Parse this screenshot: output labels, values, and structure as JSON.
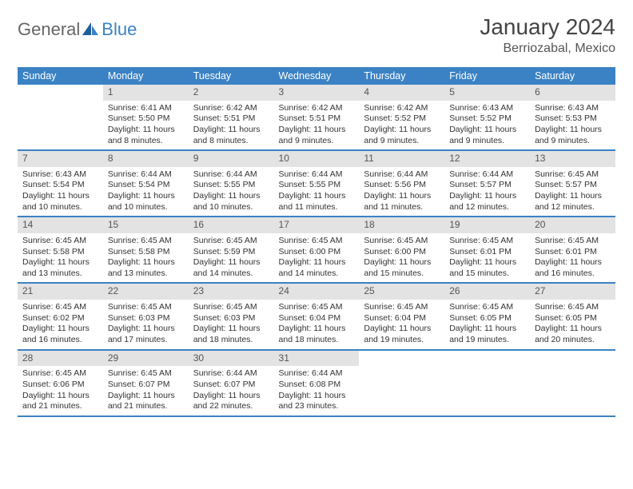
{
  "logo": {
    "general": "General",
    "blue": "Blue"
  },
  "title": "January 2024",
  "location": "Berriozabal, Mexico",
  "colors": {
    "header_bg": "#3b82c4",
    "header_text": "#ffffff",
    "daynum_bg": "#e3e3e3",
    "body_text": "#333333",
    "page_bg": "#ffffff"
  },
  "weekdays": [
    "Sunday",
    "Monday",
    "Tuesday",
    "Wednesday",
    "Thursday",
    "Friday",
    "Saturday"
  ],
  "weeks": [
    [
      {
        "empty": true
      },
      {
        "day": "1",
        "sunrise": "Sunrise: 6:41 AM",
        "sunset": "Sunset: 5:50 PM",
        "daylight": "Daylight: 11 hours and 8 minutes."
      },
      {
        "day": "2",
        "sunrise": "Sunrise: 6:42 AM",
        "sunset": "Sunset: 5:51 PM",
        "daylight": "Daylight: 11 hours and 8 minutes."
      },
      {
        "day": "3",
        "sunrise": "Sunrise: 6:42 AM",
        "sunset": "Sunset: 5:51 PM",
        "daylight": "Daylight: 11 hours and 9 minutes."
      },
      {
        "day": "4",
        "sunrise": "Sunrise: 6:42 AM",
        "sunset": "Sunset: 5:52 PM",
        "daylight": "Daylight: 11 hours and 9 minutes."
      },
      {
        "day": "5",
        "sunrise": "Sunrise: 6:43 AM",
        "sunset": "Sunset: 5:52 PM",
        "daylight": "Daylight: 11 hours and 9 minutes."
      },
      {
        "day": "6",
        "sunrise": "Sunrise: 6:43 AM",
        "sunset": "Sunset: 5:53 PM",
        "daylight": "Daylight: 11 hours and 9 minutes."
      }
    ],
    [
      {
        "day": "7",
        "sunrise": "Sunrise: 6:43 AM",
        "sunset": "Sunset: 5:54 PM",
        "daylight": "Daylight: 11 hours and 10 minutes."
      },
      {
        "day": "8",
        "sunrise": "Sunrise: 6:44 AM",
        "sunset": "Sunset: 5:54 PM",
        "daylight": "Daylight: 11 hours and 10 minutes."
      },
      {
        "day": "9",
        "sunrise": "Sunrise: 6:44 AM",
        "sunset": "Sunset: 5:55 PM",
        "daylight": "Daylight: 11 hours and 10 minutes."
      },
      {
        "day": "10",
        "sunrise": "Sunrise: 6:44 AM",
        "sunset": "Sunset: 5:55 PM",
        "daylight": "Daylight: 11 hours and 11 minutes."
      },
      {
        "day": "11",
        "sunrise": "Sunrise: 6:44 AM",
        "sunset": "Sunset: 5:56 PM",
        "daylight": "Daylight: 11 hours and 11 minutes."
      },
      {
        "day": "12",
        "sunrise": "Sunrise: 6:44 AM",
        "sunset": "Sunset: 5:57 PM",
        "daylight": "Daylight: 11 hours and 12 minutes."
      },
      {
        "day": "13",
        "sunrise": "Sunrise: 6:45 AM",
        "sunset": "Sunset: 5:57 PM",
        "daylight": "Daylight: 11 hours and 12 minutes."
      }
    ],
    [
      {
        "day": "14",
        "sunrise": "Sunrise: 6:45 AM",
        "sunset": "Sunset: 5:58 PM",
        "daylight": "Daylight: 11 hours and 13 minutes."
      },
      {
        "day": "15",
        "sunrise": "Sunrise: 6:45 AM",
        "sunset": "Sunset: 5:58 PM",
        "daylight": "Daylight: 11 hours and 13 minutes."
      },
      {
        "day": "16",
        "sunrise": "Sunrise: 6:45 AM",
        "sunset": "Sunset: 5:59 PM",
        "daylight": "Daylight: 11 hours and 14 minutes."
      },
      {
        "day": "17",
        "sunrise": "Sunrise: 6:45 AM",
        "sunset": "Sunset: 6:00 PM",
        "daylight": "Daylight: 11 hours and 14 minutes."
      },
      {
        "day": "18",
        "sunrise": "Sunrise: 6:45 AM",
        "sunset": "Sunset: 6:00 PM",
        "daylight": "Daylight: 11 hours and 15 minutes."
      },
      {
        "day": "19",
        "sunrise": "Sunrise: 6:45 AM",
        "sunset": "Sunset: 6:01 PM",
        "daylight": "Daylight: 11 hours and 15 minutes."
      },
      {
        "day": "20",
        "sunrise": "Sunrise: 6:45 AM",
        "sunset": "Sunset: 6:01 PM",
        "daylight": "Daylight: 11 hours and 16 minutes."
      }
    ],
    [
      {
        "day": "21",
        "sunrise": "Sunrise: 6:45 AM",
        "sunset": "Sunset: 6:02 PM",
        "daylight": "Daylight: 11 hours and 16 minutes."
      },
      {
        "day": "22",
        "sunrise": "Sunrise: 6:45 AM",
        "sunset": "Sunset: 6:03 PM",
        "daylight": "Daylight: 11 hours and 17 minutes."
      },
      {
        "day": "23",
        "sunrise": "Sunrise: 6:45 AM",
        "sunset": "Sunset: 6:03 PM",
        "daylight": "Daylight: 11 hours and 18 minutes."
      },
      {
        "day": "24",
        "sunrise": "Sunrise: 6:45 AM",
        "sunset": "Sunset: 6:04 PM",
        "daylight": "Daylight: 11 hours and 18 minutes."
      },
      {
        "day": "25",
        "sunrise": "Sunrise: 6:45 AM",
        "sunset": "Sunset: 6:04 PM",
        "daylight": "Daylight: 11 hours and 19 minutes."
      },
      {
        "day": "26",
        "sunrise": "Sunrise: 6:45 AM",
        "sunset": "Sunset: 6:05 PM",
        "daylight": "Daylight: 11 hours and 19 minutes."
      },
      {
        "day": "27",
        "sunrise": "Sunrise: 6:45 AM",
        "sunset": "Sunset: 6:05 PM",
        "daylight": "Daylight: 11 hours and 20 minutes."
      }
    ],
    [
      {
        "day": "28",
        "sunrise": "Sunrise: 6:45 AM",
        "sunset": "Sunset: 6:06 PM",
        "daylight": "Daylight: 11 hours and 21 minutes."
      },
      {
        "day": "29",
        "sunrise": "Sunrise: 6:45 AM",
        "sunset": "Sunset: 6:07 PM",
        "daylight": "Daylight: 11 hours and 21 minutes."
      },
      {
        "day": "30",
        "sunrise": "Sunrise: 6:44 AM",
        "sunset": "Sunset: 6:07 PM",
        "daylight": "Daylight: 11 hours and 22 minutes."
      },
      {
        "day": "31",
        "sunrise": "Sunrise: 6:44 AM",
        "sunset": "Sunset: 6:08 PM",
        "daylight": "Daylight: 11 hours and 23 minutes."
      },
      {
        "empty": true
      },
      {
        "empty": true
      },
      {
        "empty": true
      }
    ]
  ]
}
